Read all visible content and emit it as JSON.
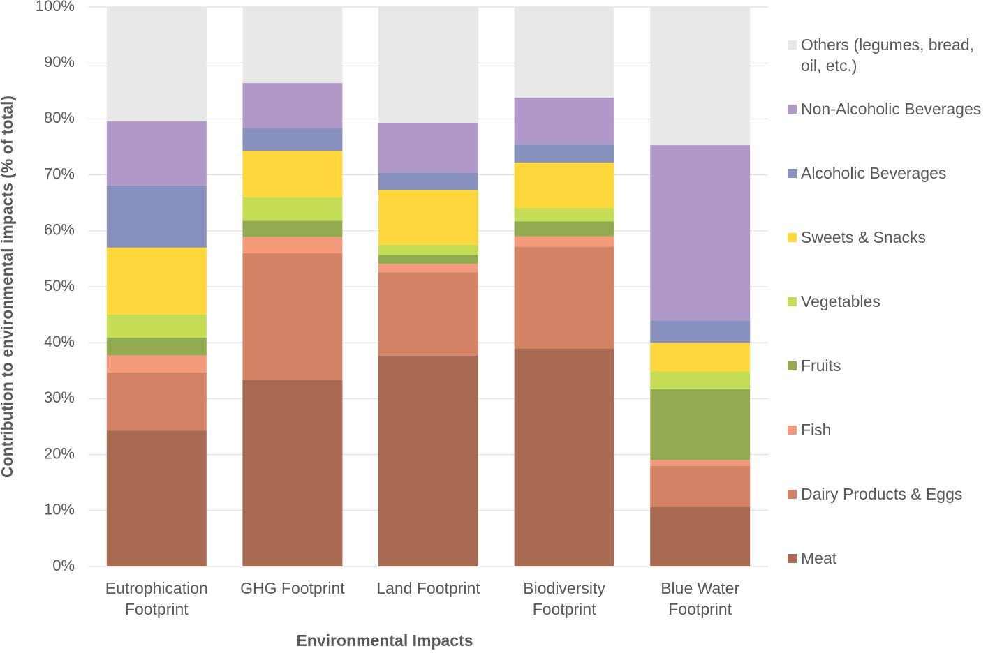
{
  "chart_data": {
    "type": "stacked_bar",
    "x_label": "Environmental Impacts",
    "y_label": "Contribution to environmental impacts  (% of total)",
    "categories": [
      "Eutrophication Footprint",
      "GHG Footprint",
      "Land Footprint",
      "Biodiversity Footprint",
      "Blue Water Footprint"
    ],
    "series": [
      {
        "name": "Meat",
        "color": "#a96a52",
        "values": [
          24.3,
          33.3,
          37.7,
          39.0,
          10.6
        ]
      },
      {
        "name": "Dairy Products & Eggs",
        "color": "#d48366",
        "values": [
          10.4,
          22.7,
          14.9,
          18.2,
          7.4
        ]
      },
      {
        "name": "Fish",
        "color": "#f4997a",
        "values": [
          3.0,
          2.9,
          1.5,
          1.8,
          1.0
        ]
      },
      {
        "name": "Fruits",
        "color": "#93ab50",
        "values": [
          3.2,
          2.9,
          1.6,
          2.7,
          12.7
        ]
      },
      {
        "name": "Vegetables",
        "color": "#c5dc55",
        "values": [
          4.2,
          4.2,
          1.8,
          2.4,
          3.2
        ]
      },
      {
        "name": "Sweets & Snacks",
        "color": "#fdd73b",
        "values": [
          11.9,
          8.3,
          9.8,
          8.1,
          5.1
        ]
      },
      {
        "name": "Alcoholic Beverages",
        "color": "#8891bd",
        "values": [
          11.1,
          4.0,
          3.1,
          3.2,
          4.0
        ]
      },
      {
        "name": "Non-Alcoholic Beverages",
        "color": "#b099c9",
        "values": [
          11.5,
          8.1,
          8.9,
          8.4,
          31.3
        ]
      },
      {
        "name": "Others (legumes, bread, oil, etc.)",
        "color": "#e8e8e8",
        "values": [
          20.4,
          13.6,
          20.7,
          16.2,
          24.7
        ]
      }
    ],
    "ylim": [
      0,
      100
    ],
    "yticks": [
      {
        "value": 0,
        "label": "0%"
      },
      {
        "value": 10,
        "label": "10%"
      },
      {
        "value": 20,
        "label": "20%"
      },
      {
        "value": 30,
        "label": "30%"
      },
      {
        "value": 40,
        "label": "40%"
      },
      {
        "value": 50,
        "label": "50%"
      },
      {
        "value": 60,
        "label": "60%"
      },
      {
        "value": 70,
        "label": "70%"
      },
      {
        "value": 80,
        "label": "80%"
      },
      {
        "value": 90,
        "label": "90%"
      },
      {
        "value": 100,
        "label": "100%"
      }
    ],
    "grid": true,
    "legend": "right"
  }
}
